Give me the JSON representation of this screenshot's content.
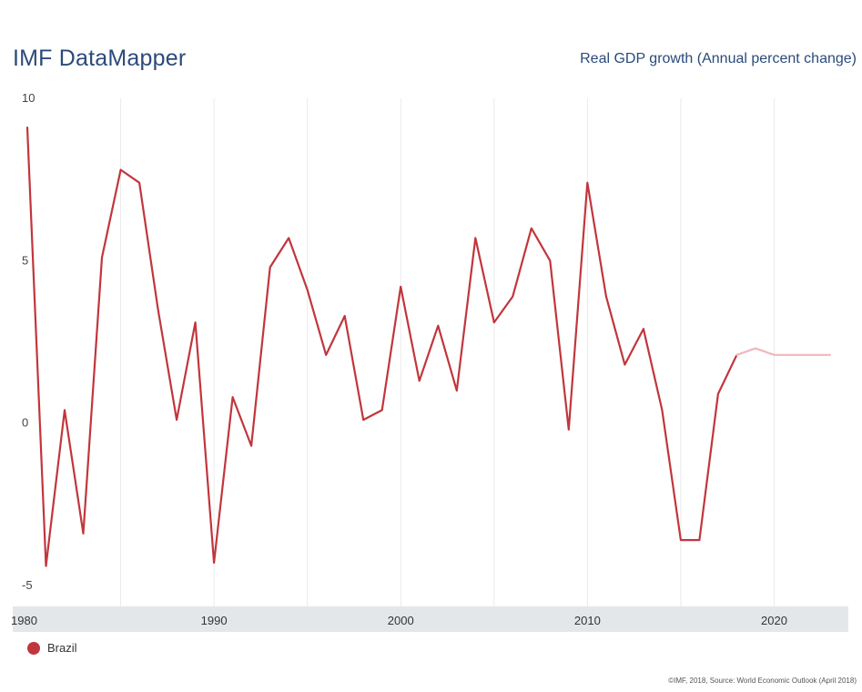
{
  "header": {
    "brand": "IMF DataMapper",
    "indicator": "Real GDP growth (Annual percent change)"
  },
  "footer": {
    "source": "©IMF, 2018, Source: World Economic Outlook (April 2018)"
  },
  "colors": {
    "series": "#c1363c",
    "projection": "#f0b8bc",
    "axis_band": "#e4e7ea",
    "gridline": "#ebebeb"
  },
  "chart_data": {
    "type": "line",
    "title": "Real GDP growth (Annual percent change)",
    "xlabel": "",
    "ylabel": "",
    "xlim": [
      1980,
      2023
    ],
    "ylim": [
      -5,
      10
    ],
    "y_ticks": [
      10,
      5,
      0,
      -5
    ],
    "x_ticks": [
      1980,
      1990,
      2000,
      2010,
      2020
    ],
    "grid": "vertical",
    "legend_position": "bottom-left",
    "series": [
      {
        "name": "Brazil",
        "x": [
          1980,
          1981,
          1982,
          1983,
          1984,
          1985,
          1986,
          1987,
          1988,
          1989,
          1990,
          1991,
          1992,
          1993,
          1994,
          1995,
          1996,
          1997,
          1998,
          1999,
          2000,
          2001,
          2002,
          2003,
          2004,
          2005,
          2006,
          2007,
          2008,
          2009,
          2010,
          2011,
          2012,
          2013,
          2014,
          2015,
          2016,
          2017,
          2018
        ],
        "values": [
          9.1,
          -4.4,
          0.4,
          -3.4,
          5.1,
          7.8,
          7.4,
          3.5,
          0.1,
          3.1,
          -4.3,
          0.8,
          -0.7,
          4.8,
          5.7,
          4.1,
          2.1,
          3.3,
          0.1,
          0.4,
          4.2,
          1.3,
          3.0,
          1.0,
          5.7,
          3.1,
          3.9,
          6.0,
          5.0,
          -0.2,
          7.4,
          3.9,
          1.8,
          2.9,
          0.4,
          -3.6,
          -3.6,
          0.9,
          2.1
        ]
      },
      {
        "name": "Brazil",
        "x": [
          2018,
          2019,
          2020,
          2021,
          2022,
          2023
        ],
        "values": [
          2.1,
          2.3,
          2.1,
          2.1,
          2.1,
          2.1
        ]
      }
    ]
  }
}
